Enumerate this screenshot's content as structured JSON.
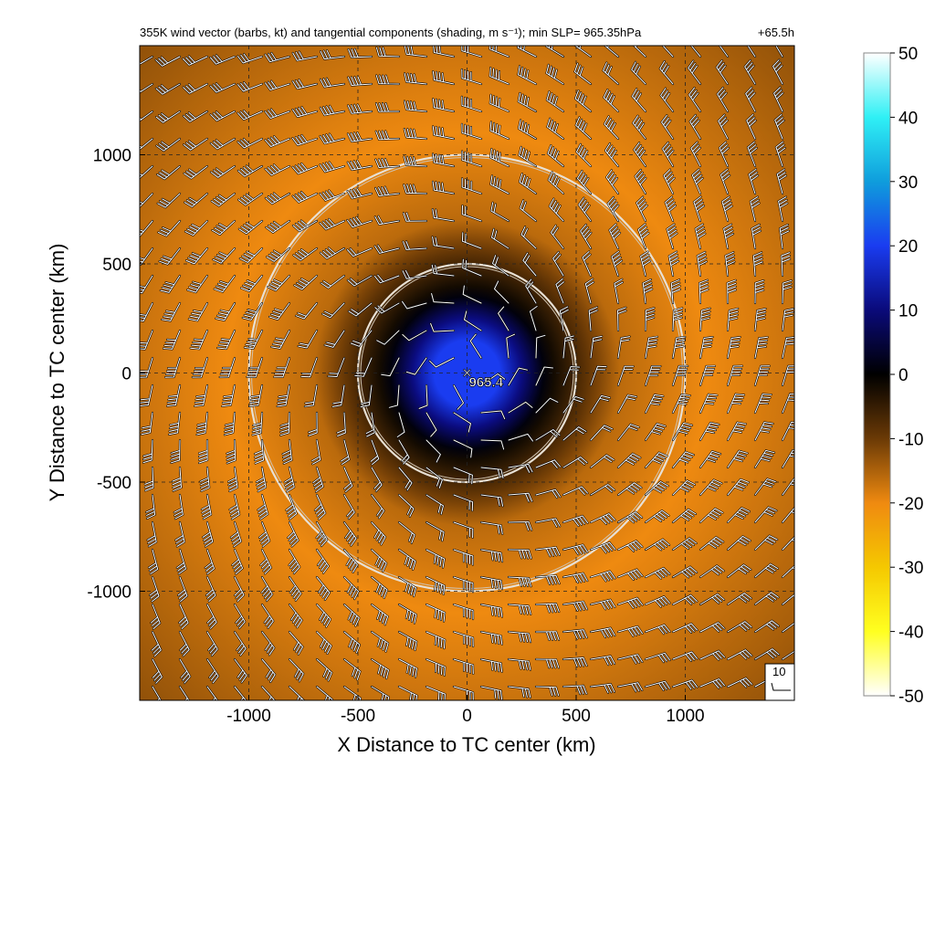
{
  "chart_data": {
    "type": "heatmap",
    "title": "355K wind vector (barbs, kt) and tangential components (shading, m s⁻¹); min SLP= 965.35hPa",
    "lead_time": "+65.5h",
    "xlabel": "X Distance to TC center (km)",
    "ylabel": "Y Distance to TC center (km)",
    "xlim": [
      -1500,
      1500
    ],
    "ylim": [
      -1500,
      1500
    ],
    "x_ticks": [
      -1000,
      -500,
      0,
      500,
      1000
    ],
    "y_ticks": [
      -1000,
      -500,
      0,
      500,
      1000
    ],
    "grid": true,
    "center_marker": {
      "symbol": "×",
      "label": "965.4",
      "x": 0,
      "y": 0
    },
    "range_rings_km": [
      500,
      1000
    ],
    "shading": {
      "field": "tangential wind",
      "units": "m s⁻¹",
      "core_value_near_center": 20,
      "ring_peak_value": -20,
      "ring_peak_radius_km": 1100,
      "outer_value": -13
    },
    "barb_reference": {
      "label": "10",
      "value_kt": 10
    },
    "colorbar": {
      "range": [
        -50,
        50
      ],
      "ticks": [
        50,
        40,
        30,
        20,
        10,
        0,
        -10,
        -20,
        -30,
        -40,
        -50
      ],
      "colormap": [
        {
          "value": 50,
          "color": "#ffffff"
        },
        {
          "value": 40,
          "color": "#2ff0f5"
        },
        {
          "value": 30,
          "color": "#0f9ddc"
        },
        {
          "value": 20,
          "color": "#1a3cf0"
        },
        {
          "value": 10,
          "color": "#0a0a7a"
        },
        {
          "value": 0,
          "color": "#000000"
        },
        {
          "value": -10,
          "color": "#6b3a06"
        },
        {
          "value": -20,
          "color": "#ef8a10"
        },
        {
          "value": -30,
          "color": "#f5c800"
        },
        {
          "value": -40,
          "color": "#ffff20"
        },
        {
          "value": -50,
          "color": "#ffffff"
        }
      ]
    }
  }
}
